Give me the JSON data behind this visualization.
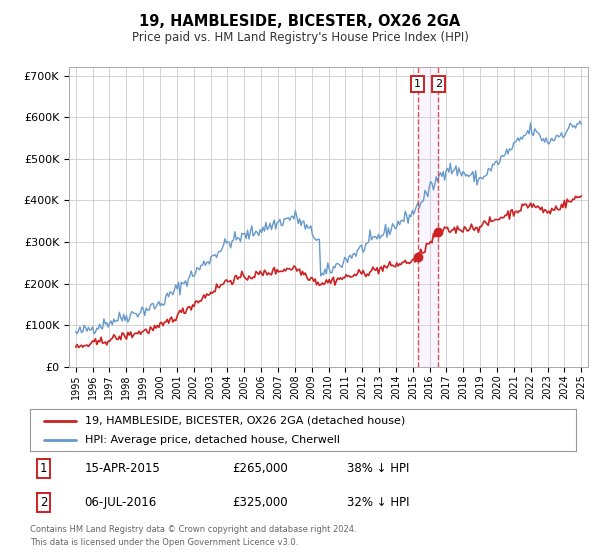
{
  "title": "19, HAMBLESIDE, BICESTER, OX26 2GA",
  "subtitle": "Price paid vs. HM Land Registry's House Price Index (HPI)",
  "ylim": [
    0,
    720000
  ],
  "yticks": [
    0,
    100000,
    200000,
    300000,
    400000,
    500000,
    600000,
    700000
  ],
  "ytick_labels": [
    "£0",
    "£100K",
    "£200K",
    "£300K",
    "£400K",
    "£500K",
    "£600K",
    "£700K"
  ],
  "hpi_color": "#6699cc",
  "price_color": "#cc2222",
  "marker_color": "#cc2222",
  "vline_color": "#dd3333",
  "grid_color": "#cccccc",
  "bg_color": "#ffffff",
  "legend_border_color": "#999999",
  "annotation_box_color": "#cc2222",
  "sale1_x": 2015.29,
  "sale1_y": 265000,
  "sale1_label": "1",
  "sale1_date": "15-APR-2015",
  "sale1_price": "£265,000",
  "sale1_pct": "38% ↓ HPI",
  "sale2_x": 2016.51,
  "sale2_y": 325000,
  "sale2_label": "2",
  "sale2_date": "06-JUL-2016",
  "sale2_price": "£325,000",
  "sale2_pct": "32% ↓ HPI",
  "legend_line1": "19, HAMBLESIDE, BICESTER, OX26 2GA (detached house)",
  "legend_line2": "HPI: Average price, detached house, Cherwell",
  "footer1": "Contains HM Land Registry data © Crown copyright and database right 2024.",
  "footer2": "This data is licensed under the Open Government Licence v3.0.",
  "xlim_start": 1994.6,
  "xlim_end": 2025.4
}
